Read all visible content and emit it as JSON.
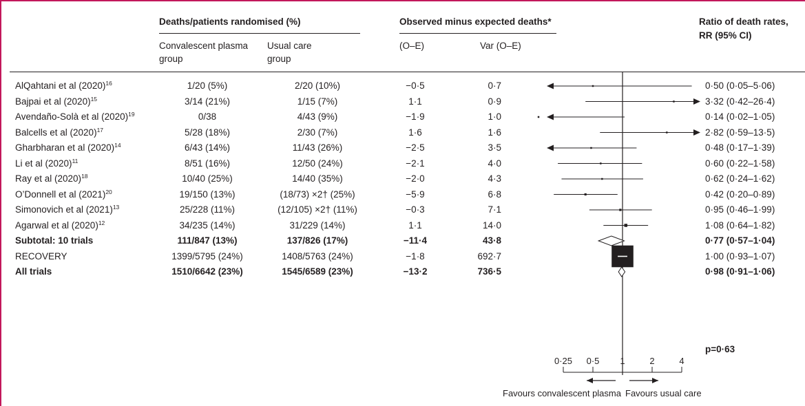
{
  "headers": {
    "deaths_group": "Deaths/patients randomised (%)",
    "treatment": "Convalescent plasma group",
    "control": "Usual care group",
    "observed_group": "Observed minus expected deaths*",
    "oe": "(O–E)",
    "var": "Var (O–E)",
    "ratio_line1": "Ratio of death rates,",
    "ratio_line2": "RR (95% CI)"
  },
  "rows": [
    {
      "study": "AlQahtani et al (2020)",
      "ref": "16",
      "treatment": "1/20 (5%)",
      "control": "2/20 (10%)",
      "oe": "−0·5",
      "var": "0·7",
      "ci": "0·50 (0·05–5·06)",
      "bold": false
    },
    {
      "study": "Bajpai et al (2020)",
      "ref": "15",
      "treatment": "3/14 (21%)",
      "control": "1/15 (7%)",
      "oe": "1·1",
      "var": "0·9",
      "ci": "3·32 (0·42–26·4)",
      "bold": false
    },
    {
      "study": "Avendaño-Solà et al (2020)",
      "ref": "19",
      "treatment": "0/38",
      "control": "4/43 (9%)",
      "oe": "−1·9",
      "var": "1·0",
      "ci": "0·14 (0·02–1·05)",
      "bold": false
    },
    {
      "study": "Balcells et al (2020)",
      "ref": "17",
      "treatment": "5/28 (18%)",
      "control": "2/30 (7%)",
      "oe": "1·6",
      "var": "1·6",
      "ci": "2·82 (0·59–13·5)",
      "bold": false
    },
    {
      "study": "Gharbharan et al (2020)",
      "ref": "14",
      "treatment": "6/43 (14%)",
      "control": "11/43 (26%)",
      "oe": "−2·5",
      "var": "3·5",
      "ci": "0·48 (0·17–1·39)",
      "bold": false
    },
    {
      "study": "Li et al (2020)",
      "ref": "11",
      "treatment": "8/51 (16%)",
      "control": "12/50 (24%)",
      "oe": "−2·1",
      "var": "4·0",
      "ci": "0·60 (0·22–1·58)",
      "bold": false
    },
    {
      "study": "Ray et al (2020)",
      "ref": "18",
      "treatment": "10/40 (25%)",
      "control": "14/40 (35%)",
      "oe": "−2·0",
      "var": "4·3",
      "ci": "0·62 (0·24–1·62)",
      "bold": false
    },
    {
      "study": "O’Donnell et al (2021)",
      "ref": "20",
      "treatment": "19/150 (13%)",
      "control": "(18/73) ×2† (25%)",
      "oe": "−5·9",
      "var": "6·8",
      "ci": "0·42 (0·20–0·89)",
      "bold": false
    },
    {
      "study": "Simonovich et al (2021)",
      "ref": "13",
      "treatment": "25/228 (11%)",
      "control": "(12/105) ×2† (11%)",
      "oe": "−0·3",
      "var": "7·1",
      "ci": "0·95 (0·46–1·99)",
      "bold": false
    },
    {
      "study": "Agarwal et al (2020)",
      "ref": "12",
      "treatment": "34/235 (14%)",
      "control": "31/229 (14%)",
      "oe": "1·1",
      "var": "14·0",
      "ci": "1·08 (0·64–1·82)",
      "bold": false
    },
    {
      "study": "Subtotal: 10 trials",
      "ref": "",
      "treatment": "111/847 (13%)",
      "control": "137/826 (17%)",
      "oe": "−11·4",
      "var": "43·8",
      "ci": "0·77 (0·57–1·04)",
      "bold": true
    },
    {
      "study": "RECOVERY",
      "ref": "",
      "treatment": "1399/5795 (24%)",
      "control": "1408/5763 (24%)",
      "oe": "−1·8",
      "var": "692·7",
      "ci": "1·00 (0·93–1·07)",
      "bold": false
    },
    {
      "study": "All trials",
      "ref": "",
      "treatment": "1510/6642 (23%)",
      "control": "1545/6589 (23%)",
      "oe": "−13·2",
      "var": "736·5",
      "ci": "0·98 (0·91–1·06)",
      "bold": true
    }
  ],
  "p_value": "p=0·63",
  "axis": {
    "ticks": [
      {
        "value": 0.25,
        "label": "0·25"
      },
      {
        "value": 0.5,
        "label": "0·5"
      },
      {
        "value": 1,
        "label": "1"
      },
      {
        "value": 2,
        "label": "2"
      },
      {
        "value": 4,
        "label": "4"
      }
    ],
    "favours_left": "Favours convalescent plasma",
    "favours_right": "Favours usual care"
  },
  "chart_data": {
    "type": "forest",
    "scale": "log",
    "xlim": [
      0.25,
      4
    ],
    "reference_line": 1,
    "studies": [
      {
        "name": "AlQahtani et al (2020)",
        "rr": 0.5,
        "lo": 0.05,
        "hi": 5.06,
        "marker": "square"
      },
      {
        "name": "Bajpai et al (2020)",
        "rr": 3.32,
        "lo": 0.42,
        "hi": 26.4,
        "marker": "square"
      },
      {
        "name": "Avendaño-Solà et al (2020)",
        "rr": 0.14,
        "lo": 0.02,
        "hi": 1.05,
        "marker": "square"
      },
      {
        "name": "Balcells et al (2020)",
        "rr": 2.82,
        "lo": 0.59,
        "hi": 13.5,
        "marker": "square"
      },
      {
        "name": "Gharbharan et al (2020)",
        "rr": 0.48,
        "lo": 0.17,
        "hi": 1.39,
        "marker": "square"
      },
      {
        "name": "Li et al (2020)",
        "rr": 0.6,
        "lo": 0.22,
        "hi": 1.58,
        "marker": "square"
      },
      {
        "name": "Ray et al (2020)",
        "rr": 0.62,
        "lo": 0.24,
        "hi": 1.62,
        "marker": "square"
      },
      {
        "name": "O’Donnell et al (2021)",
        "rr": 0.42,
        "lo": 0.2,
        "hi": 0.89,
        "marker": "square"
      },
      {
        "name": "Simonovich et al (2021)",
        "rr": 0.95,
        "lo": 0.46,
        "hi": 1.99,
        "marker": "square"
      },
      {
        "name": "Agarwal et al (2020)",
        "rr": 1.08,
        "lo": 0.64,
        "hi": 1.82,
        "marker": "square"
      },
      {
        "name": "Subtotal: 10 trials",
        "rr": 0.77,
        "lo": 0.57,
        "hi": 1.04,
        "marker": "diamond"
      },
      {
        "name": "RECOVERY",
        "rr": 1.0,
        "lo": 0.93,
        "hi": 1.07,
        "marker": "square"
      },
      {
        "name": "All trials",
        "rr": 0.98,
        "lo": 0.91,
        "hi": 1.06,
        "marker": "diamond"
      }
    ],
    "weights_var_oe": [
      0.7,
      0.9,
      1.0,
      1.6,
      3.5,
      4.0,
      4.3,
      6.8,
      7.1,
      14.0,
      43.8,
      692.7,
      736.5
    ]
  }
}
